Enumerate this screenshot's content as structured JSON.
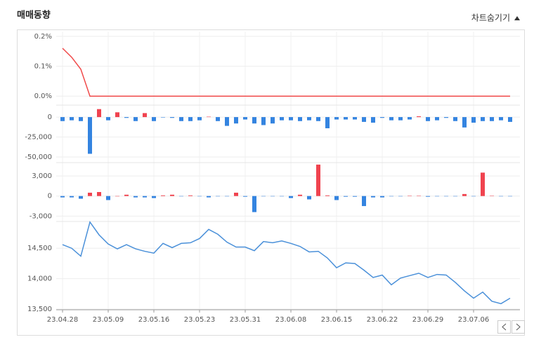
{
  "header": {
    "title": "매매동향",
    "toggle": "차트숨기기"
  },
  "chart_data": [
    {
      "type": "line",
      "color": "#f04a4a",
      "values": [
        0.16,
        0.13,
        0.09,
        0,
        0,
        0,
        0,
        0,
        0,
        0,
        0,
        0,
        0,
        0,
        0,
        0,
        0,
        0,
        0,
        0,
        0,
        0,
        0,
        0,
        0,
        0,
        0,
        0,
        0,
        0,
        0,
        0,
        0,
        0,
        0,
        0,
        0,
        0,
        0,
        0,
        0,
        0,
        0,
        0,
        0,
        0,
        0,
        0,
        0,
        0
      ],
      "ylim": [
        -0.03,
        0.216
      ],
      "yticks": [
        {
          "value": 0,
          "label": "0.0%"
        },
        {
          "value": 0.1,
          "label": "0.1%"
        },
        {
          "value": 0.2,
          "label": "0.2%"
        }
      ]
    },
    {
      "type": "bar",
      "positive_color": "#f0434f",
      "negative_color": "#3484e0",
      "values": [
        -5000,
        -4000,
        -5000,
        -46000,
        10000,
        -4000,
        6000,
        -1000,
        -5000,
        5000,
        -5000,
        -500,
        -1000,
        -5000,
        -5000,
        -4000,
        500,
        -5000,
        -11000,
        -8000,
        -3000,
        -8000,
        -10000,
        -8000,
        -4000,
        -4000,
        -5000,
        -4000,
        -5000,
        -14000,
        -3000,
        -3000,
        -3000,
        -6000,
        -7000,
        -1000,
        -4000,
        -4000,
        -3000,
        1000,
        -5000,
        -4000,
        -1000,
        -5000,
        -13000,
        -7000,
        -5000,
        -5000,
        -4000,
        -6000
      ],
      "ylim": [
        -57000,
        15000
      ],
      "yticks": [
        {
          "value": -50000,
          "label": "-50,000"
        },
        {
          "value": -25000,
          "label": "-25,000"
        },
        0
      ]
    },
    {
      "type": "bar",
      "positive_color": "#f0434f",
      "negative_color": "#3484e0",
      "values": [
        -200,
        -200,
        -400,
        500,
        600,
        -600,
        0,
        200,
        -200,
        -200,
        -300,
        100,
        200,
        -50,
        100,
        -50,
        -200,
        -50,
        -50,
        500,
        -100,
        -2400,
        -50,
        -50,
        -50,
        -300,
        200,
        -500,
        4700,
        100,
        -600,
        -100,
        -100,
        -1500,
        -200,
        -200,
        -50,
        -50,
        50,
        50,
        -100,
        -50,
        -50,
        -50,
        300,
        -50,
        3500,
        50,
        -50,
        -50
      ],
      "ylim": [
        -3800,
        5000
      ],
      "yticks": [
        {
          "value": -3000,
          "label": "-3,000"
        },
        0,
        {
          "value": 3000,
          "label": "3,000"
        }
      ]
    },
    {
      "type": "line",
      "color": "#4a90d9",
      "categories": [
        "23.04.28",
        null,
        null,
        null,
        null,
        "23.05.09",
        null,
        null,
        null,
        null,
        "23.05.16",
        null,
        null,
        null,
        null,
        "23.05.23",
        null,
        null,
        null,
        null,
        "23.05.31",
        null,
        null,
        null,
        null,
        "23.06.08",
        null,
        null,
        null,
        null,
        "23.06.15",
        null,
        null,
        null,
        null,
        "23.06.22",
        null,
        null,
        null,
        null,
        "23.06.29",
        null,
        null,
        null,
        null,
        "23.07.06",
        null,
        null,
        null,
        null
      ],
      "values": [
        14560,
        14500,
        14370,
        14930,
        14720,
        14570,
        14490,
        14560,
        14490,
        14450,
        14420,
        14580,
        14510,
        14580,
        14590,
        14660,
        14810,
        14730,
        14600,
        14520,
        14520,
        14460,
        14610,
        14590,
        14620,
        14580,
        14530,
        14440,
        14450,
        14340,
        14180,
        14260,
        14250,
        14140,
        14020,
        14060,
        13900,
        14010,
        14050,
        14090,
        14020,
        14070,
        14060,
        13940,
        13800,
        13680,
        13780,
        13630,
        13590,
        13680
      ],
      "ylim": [
        13490,
        14940
      ],
      "yticks": [
        {
          "value": 13500,
          "label": "13,500"
        },
        {
          "value": 14000,
          "label": "14,000"
        },
        {
          "value": 14500,
          "label": "14,500"
        }
      ]
    }
  ]
}
